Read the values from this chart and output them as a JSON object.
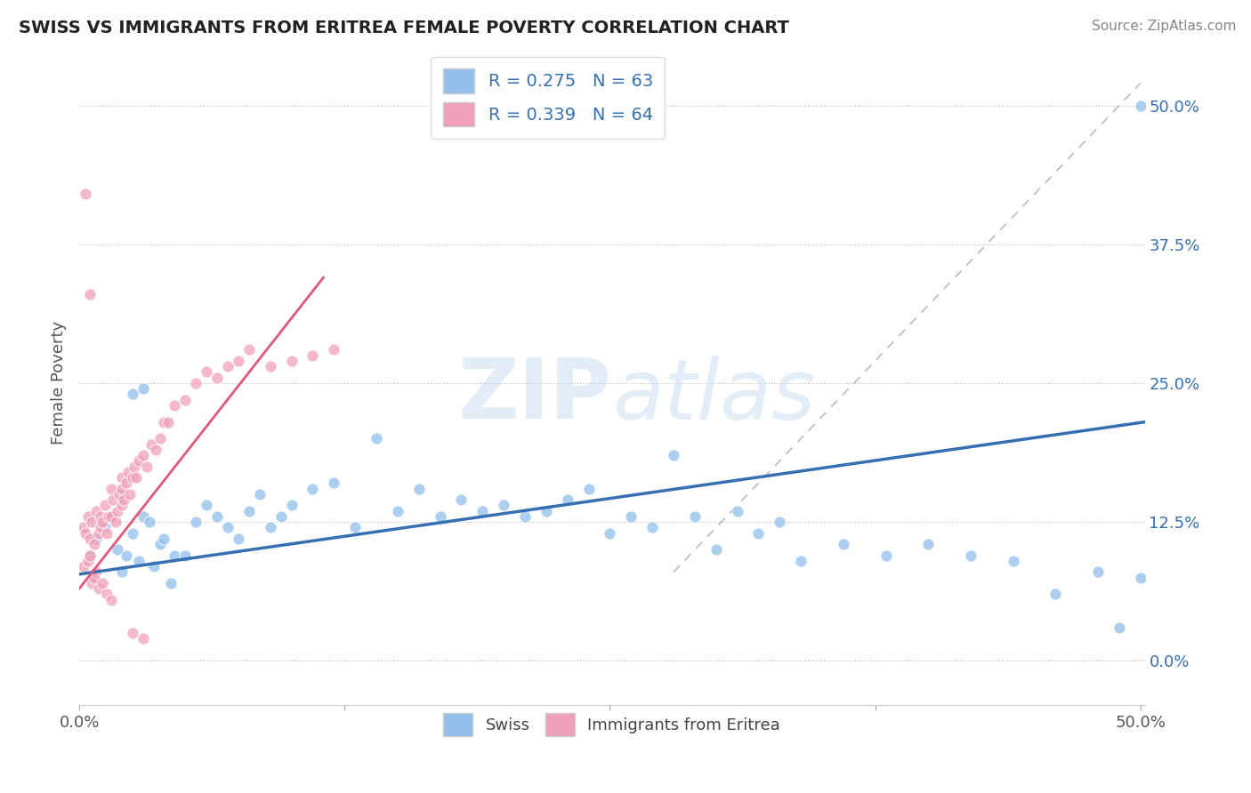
{
  "title": "SWISS VS IMMIGRANTS FROM ERITREA FEMALE POVERTY CORRELATION CHART",
  "source": "Source: ZipAtlas.com",
  "ylabel": "Female Poverty",
  "xlim": [
    0.0,
    0.502
  ],
  "ylim": [
    -0.04,
    0.54
  ],
  "right_yticks": [
    0.0,
    0.125,
    0.25,
    0.375,
    0.5
  ],
  "right_yticklabels": [
    "0.0%",
    "12.5%",
    "25.0%",
    "37.5%",
    "50.0%"
  ],
  "legend_r": [
    0.275,
    0.339
  ],
  "legend_n": [
    63,
    64
  ],
  "blue_color": "#92C0EA",
  "pink_color": "#F0A0B8",
  "blue_line_color": "#3670B2",
  "pink_line_color": "#E05878",
  "watermark": "ZIPatlas",
  "background_color": "#FFFFFF",
  "grid_color": "#BBBBBB",
  "swiss_trend_x": [
    0.0,
    0.502
  ],
  "swiss_trend_y": [
    0.078,
    0.215
  ],
  "eritrea_trend_x": [
    0.0,
    0.115
  ],
  "eritrea_trend_y": [
    0.065,
    0.345
  ],
  "diag_line_x": [
    0.28,
    0.5
  ],
  "diag_line_y": [
    0.08,
    0.52
  ],
  "swiss_x": [
    0.005,
    0.008,
    0.012,
    0.015,
    0.018,
    0.02,
    0.022,
    0.025,
    0.028,
    0.03,
    0.033,
    0.035,
    0.038,
    0.04,
    0.043,
    0.045,
    0.05,
    0.055,
    0.06,
    0.065,
    0.07,
    0.075,
    0.08,
    0.085,
    0.09,
    0.095,
    0.1,
    0.11,
    0.12,
    0.13,
    0.14,
    0.15,
    0.16,
    0.17,
    0.18,
    0.19,
    0.2,
    0.21,
    0.22,
    0.23,
    0.24,
    0.25,
    0.26,
    0.27,
    0.28,
    0.29,
    0.3,
    0.31,
    0.32,
    0.33,
    0.34,
    0.36,
    0.38,
    0.4,
    0.42,
    0.44,
    0.46,
    0.48,
    0.49,
    0.5,
    0.025,
    0.03,
    0.5
  ],
  "swiss_y": [
    0.095,
    0.11,
    0.12,
    0.13,
    0.1,
    0.08,
    0.095,
    0.115,
    0.09,
    0.13,
    0.125,
    0.085,
    0.105,
    0.11,
    0.07,
    0.095,
    0.095,
    0.125,
    0.14,
    0.13,
    0.12,
    0.11,
    0.135,
    0.15,
    0.12,
    0.13,
    0.14,
    0.155,
    0.16,
    0.12,
    0.2,
    0.135,
    0.155,
    0.13,
    0.145,
    0.135,
    0.14,
    0.13,
    0.135,
    0.145,
    0.155,
    0.115,
    0.13,
    0.12,
    0.185,
    0.13,
    0.1,
    0.135,
    0.115,
    0.125,
    0.09,
    0.105,
    0.095,
    0.105,
    0.095,
    0.09,
    0.06,
    0.08,
    0.03,
    0.075,
    0.24,
    0.245,
    0.5
  ],
  "eritrea_x": [
    0.002,
    0.003,
    0.004,
    0.005,
    0.006,
    0.007,
    0.008,
    0.009,
    0.01,
    0.01,
    0.011,
    0.012,
    0.013,
    0.014,
    0.015,
    0.015,
    0.016,
    0.017,
    0.018,
    0.019,
    0.02,
    0.02,
    0.02,
    0.021,
    0.022,
    0.023,
    0.024,
    0.025,
    0.026,
    0.027,
    0.028,
    0.03,
    0.032,
    0.034,
    0.036,
    0.038,
    0.04,
    0.042,
    0.045,
    0.05,
    0.055,
    0.06,
    0.065,
    0.07,
    0.075,
    0.08,
    0.09,
    0.1,
    0.11,
    0.12,
    0.002,
    0.004,
    0.006,
    0.008,
    0.005,
    0.007,
    0.009,
    0.011,
    0.013,
    0.015,
    0.003,
    0.005,
    0.025,
    0.03
  ],
  "eritrea_y": [
    0.12,
    0.115,
    0.13,
    0.11,
    0.125,
    0.105,
    0.135,
    0.115,
    0.12,
    0.13,
    0.125,
    0.14,
    0.115,
    0.13,
    0.155,
    0.13,
    0.145,
    0.125,
    0.135,
    0.15,
    0.155,
    0.14,
    0.165,
    0.145,
    0.16,
    0.17,
    0.15,
    0.165,
    0.175,
    0.165,
    0.18,
    0.185,
    0.175,
    0.195,
    0.19,
    0.2,
    0.215,
    0.215,
    0.23,
    0.235,
    0.25,
    0.26,
    0.255,
    0.265,
    0.27,
    0.28,
    0.265,
    0.27,
    0.275,
    0.28,
    0.085,
    0.09,
    0.07,
    0.08,
    0.095,
    0.075,
    0.065,
    0.07,
    0.06,
    0.055,
    0.42,
    0.33,
    0.025,
    0.02
  ]
}
